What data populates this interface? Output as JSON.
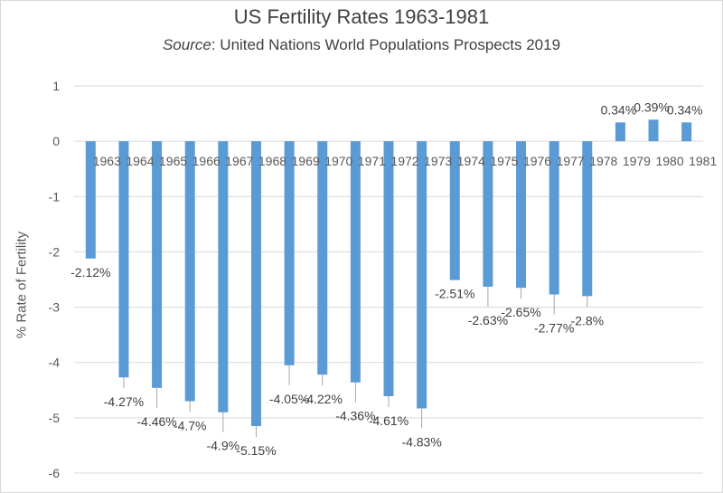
{
  "chart_data": {
    "type": "bar",
    "title": "US Fertility Rates 1963-1981",
    "subtitle_prefix": "Source",
    "subtitle_rest": ": United Nations World Populations Prospects 2019",
    "xlabel": "",
    "ylabel": "% Rate of Fertility",
    "ylim": [
      -6,
      1
    ],
    "yticks": [
      1,
      0,
      -1,
      -2,
      -3,
      -4,
      -5,
      -6
    ],
    "categories": [
      "1963",
      "1964",
      "1965",
      "1966",
      "1967",
      "1968",
      "1969",
      "1970",
      "1971",
      "1972",
      "1973",
      "1974",
      "1975",
      "1976",
      "1977",
      "1978",
      "1979",
      "1980",
      "1981"
    ],
    "values": [
      -2.12,
      -4.27,
      -4.46,
      -4.7,
      -4.9,
      -5.15,
      -4.05,
      -4.22,
      -4.36,
      -4.61,
      -4.83,
      -2.51,
      -2.63,
      -2.65,
      -2.77,
      -2.8,
      0.34,
      0.39,
      0.34
    ],
    "data_labels": [
      "-2.12%",
      "-4.27%",
      "-4.46%",
      "-4.7%",
      "-4.9%",
      "-5.15%",
      "-4.05%",
      "-4.22%",
      "-4.36%",
      "-4.61%",
      "-4.83%",
      "-2.51%",
      "-2.63%",
      "-2.65%",
      "-2.77%",
      "-2.8%",
      "0.34%",
      "0.39%",
      "0.34%"
    ],
    "bar_color": "#5b9bd5",
    "grid_color": "#d9d9d9",
    "grid": true,
    "legend": "none"
  }
}
